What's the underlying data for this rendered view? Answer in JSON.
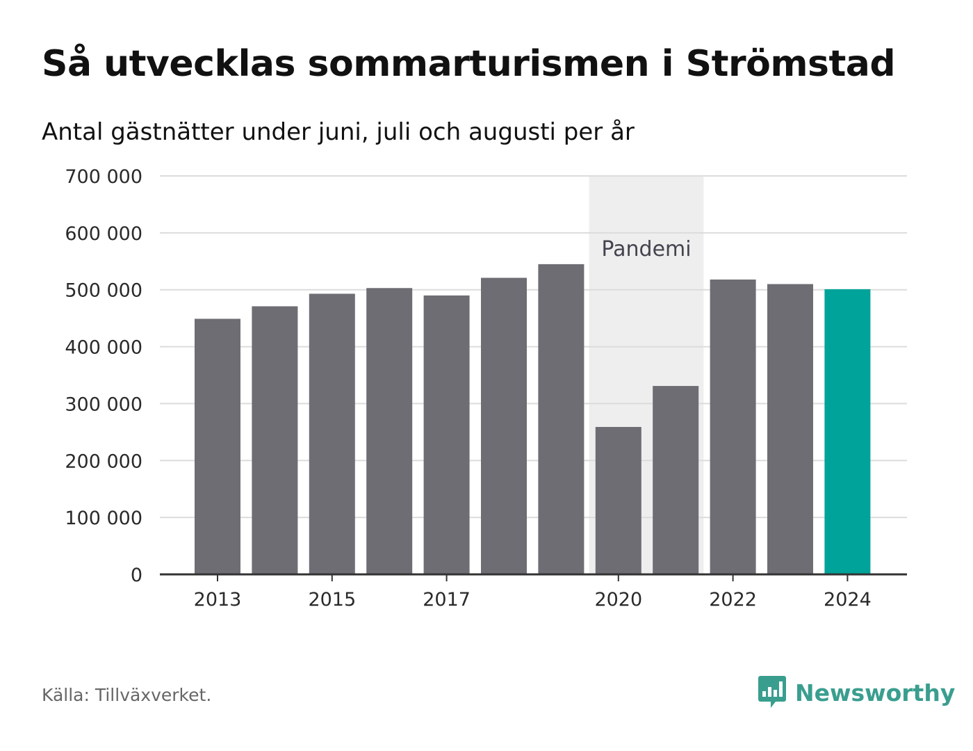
{
  "chart_data": {
    "type": "bar",
    "title": "Så utvecklas sommarturismen i Strömstad",
    "subtitle": "Antal gästnätter under juni, juli och augusti per år",
    "categories": [
      "2013",
      "2014",
      "2015",
      "2016",
      "2017",
      "2018",
      "2019",
      "2020",
      "2021",
      "2022",
      "2023",
      "2024"
    ],
    "values": [
      449000,
      471000,
      493000,
      503000,
      490000,
      521000,
      545000,
      259000,
      331000,
      518000,
      510000,
      501000
    ],
    "x_tick_labels": [
      "2013",
      "2015",
      "2017",
      "2020",
      "2022",
      "2024"
    ],
    "y_ticks": [
      0,
      100000,
      200000,
      300000,
      400000,
      500000,
      600000,
      700000
    ],
    "y_tick_labels": [
      "0",
      "100 000",
      "200 000",
      "300 000",
      "400 000",
      "500 000",
      "600 000",
      "700 000"
    ],
    "ylim": [
      0,
      700000
    ],
    "xlabel": "",
    "ylabel": "",
    "grid": true,
    "legend": "none",
    "highlight": {
      "category": "2024",
      "color": "#00a39a"
    },
    "bar_color": "#6e6d73",
    "shaded_region": {
      "from": "2020",
      "to": "2021",
      "label": "Pandemi",
      "color": "#eeeeee"
    }
  },
  "source": "Källa: Tillväxverket.",
  "brand": {
    "name": "Newsworthy",
    "color": "#3a9e8f",
    "icon": "newsworthy-logo-icon"
  }
}
